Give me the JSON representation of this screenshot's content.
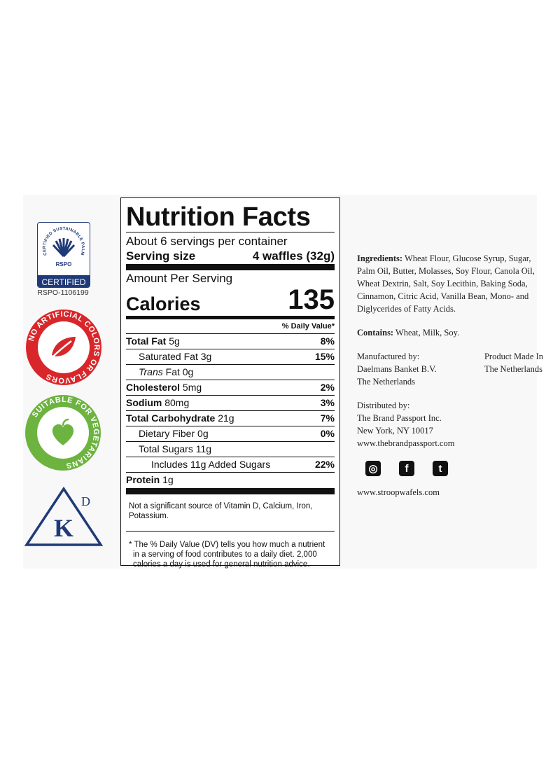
{
  "badges": {
    "rspo_arc": "CERTIFIED SUSTAINABLE PALM OIL",
    "rspo_mark": "RSPO",
    "rspo_certified": "CERTIFIED",
    "rspo_id": "RSPO-1106199",
    "no_artificial": "NO ARTIFICIAL COLORS OR FLAVORS",
    "vegetarian": "SUITABLE FOR VEGETARIANS",
    "kosher_k": "K",
    "kosher_d": "D"
  },
  "nutrition": {
    "title": "Nutrition Facts",
    "servings": "About 6 servings per container",
    "serving_size_label": "Serving size",
    "serving_size_value": "4 waffles (32g)",
    "amount_per_serving": "Amount Per Serving",
    "calories_label": "Calories",
    "calories_value": "135",
    "dv_header": "% Daily Value*",
    "rows": [
      {
        "label": "Total Fat",
        "amount": "5g",
        "dv": "8%"
      },
      {
        "label": "Saturated Fat",
        "amount": "3g",
        "dv": "15%"
      },
      {
        "label": "Trans",
        "label2": "Fat",
        "amount": "0g",
        "dv": ""
      },
      {
        "label": "Cholesterol",
        "amount": "5mg",
        "dv": "2%"
      },
      {
        "label": "Sodium",
        "amount": "80mg",
        "dv": "3%"
      },
      {
        "label": "Total Carbohydrate",
        "amount": "21g",
        "dv": "7%"
      },
      {
        "label": "Dietary Fiber",
        "amount": "0g",
        "dv": "0%"
      },
      {
        "label": "Total Sugars",
        "amount": "11g",
        "dv": ""
      },
      {
        "label": "Includes 11g Added Sugars",
        "amount": "",
        "dv": "22%"
      }
    ],
    "protein_label": "Protein",
    "protein_amount": "1g",
    "not_significant": "Not a significant source of Vitamin D, Calcium, Iron, Potassium.",
    "footnote": "* The % Daily Value (DV) tells you how much a nutrient in a serving of food contributes to a daily diet. 2,000 calories a day is used for general nutrition advice."
  },
  "info": {
    "ingredients_label": "Ingredients:",
    "ingredients": "Wheat Flour, Glucose Syrup, Sugar, Palm Oil, Butter, Molasses, Soy Flour, Canola Oil, Wheat Dextrin, Salt, Soy Lecithin, Baking Soda, Cinnamon, Citric Acid, Vanilla Bean, Mono- and Diglycerides of Fatty Acids.",
    "contains_label": "Contains:",
    "contains": "Wheat, Milk, Soy.",
    "manufactured": [
      "Manufactured by:",
      "Daelmans Banket B.V.",
      "The Netherlands"
    ],
    "made_in": [
      "Product Made In",
      "The Netherlands"
    ],
    "distributed": [
      "Distributed by:",
      "The Brand Passport Inc.",
      "New York, NY 10017",
      "www.thebrandpassport.com"
    ],
    "website": "www.stroopwafels.com"
  }
}
